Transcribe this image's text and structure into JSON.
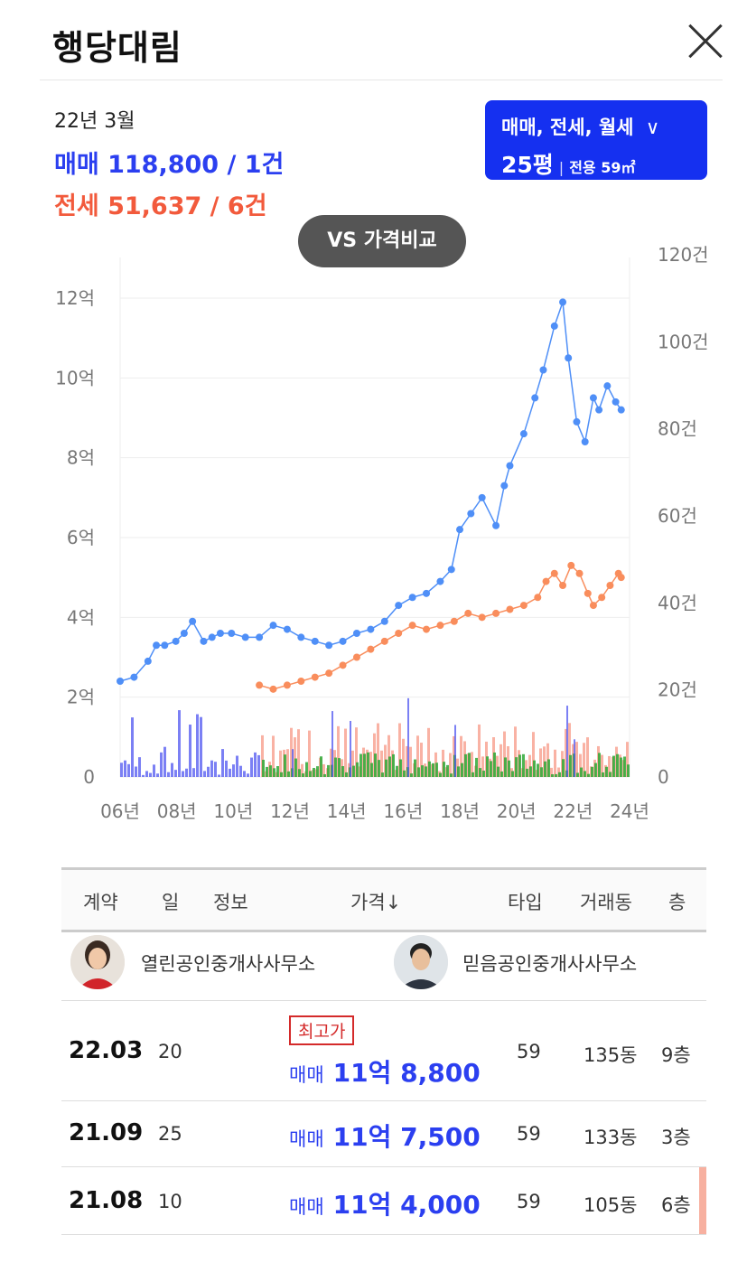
{
  "title": "행당대림",
  "summary": {
    "date": "22년 3월",
    "sale": "매매 118,800 / 1건",
    "jeonse": "전세 51,637 / 6건"
  },
  "filter": {
    "types": "매매, 전세, 월세",
    "size": "25평",
    "area": "전용 59㎡"
  },
  "vs_button": "VS 가격비교",
  "chart_data": {
    "type": "line",
    "x_ticks": [
      "06년",
      "08년",
      "10년",
      "12년",
      "14년",
      "16년",
      "18년",
      "20년",
      "22년",
      "24년"
    ],
    "left_axis": {
      "unit": "억",
      "ticks": [
        "0",
        "2억",
        "4억",
        "6억",
        "8억",
        "10억",
        "12억"
      ],
      "range": [
        0,
        12
      ]
    },
    "right_axis": {
      "unit": "건",
      "ticks": [
        "0",
        "20건",
        "40건",
        "60건",
        "80건",
        "100건",
        "120건"
      ],
      "range": [
        0,
        120
      ]
    },
    "colors": {
      "sale": "#4f8ff7",
      "jeonse": "#f98d5c",
      "sale_volume": "#4f56f0",
      "jeonse_volume": "#f7917d",
      "monthly_volume": "#2fa836"
    },
    "series": [
      {
        "name": "매매",
        "x": [
          2006.0,
          2006.5,
          2007.0,
          2007.3,
          2007.6,
          2008.0,
          2008.3,
          2008.6,
          2009.0,
          2009.3,
          2009.6,
          2010.0,
          2010.5,
          2011.0,
          2011.5,
          2012.0,
          2012.5,
          2013.0,
          2013.5,
          2014.0,
          2014.5,
          2015.0,
          2015.5,
          2016.0,
          2016.5,
          2017.0,
          2017.5,
          2017.9,
          2018.2,
          2018.6,
          2019.0,
          2019.5,
          2019.8,
          2020.0,
          2020.5,
          2020.9,
          2021.2,
          2021.6,
          2021.9,
          2022.1,
          2022.4,
          2022.7,
          2023.0,
          2023.2,
          2023.5,
          2023.8,
          2024.0
        ],
        "y": [
          2.4,
          2.5,
          2.9,
          3.3,
          3.3,
          3.4,
          3.6,
          3.9,
          3.4,
          3.5,
          3.6,
          3.6,
          3.5,
          3.5,
          3.8,
          3.7,
          3.5,
          3.4,
          3.3,
          3.4,
          3.6,
          3.7,
          3.9,
          4.3,
          4.5,
          4.6,
          4.9,
          5.2,
          6.2,
          6.6,
          7.0,
          6.3,
          7.3,
          7.8,
          8.6,
          9.5,
          10.2,
          11.3,
          11.9,
          10.5,
          8.9,
          8.4,
          9.5,
          9.2,
          9.8,
          9.4,
          9.2
        ]
      },
      {
        "name": "전세",
        "x": [
          2011.0,
          2011.5,
          2012.0,
          2012.5,
          2013.0,
          2013.5,
          2014.0,
          2014.5,
          2015.0,
          2015.5,
          2016.0,
          2016.5,
          2017.0,
          2017.5,
          2018.0,
          2018.5,
          2019.0,
          2019.5,
          2020.0,
          2020.5,
          2021.0,
          2021.3,
          2021.6,
          2021.9,
          2022.2,
          2022.5,
          2022.8,
          2023.0,
          2023.3,
          2023.6,
          2023.9,
          2024.0
        ],
        "y": [
          2.3,
          2.2,
          2.3,
          2.4,
          2.5,
          2.6,
          2.8,
          3.0,
          3.2,
          3.4,
          3.6,
          3.8,
          3.7,
          3.8,
          3.9,
          4.1,
          4.0,
          4.1,
          4.2,
          4.3,
          4.5,
          4.9,
          5.1,
          4.8,
          5.3,
          5.1,
          4.6,
          4.3,
          4.5,
          4.8,
          5.1,
          5.0
        ]
      }
    ]
  },
  "table": {
    "headers": [
      "계약",
      "일",
      "정보",
      "가격↓",
      "타입",
      "거래동",
      "층"
    ],
    "agents": [
      {
        "name": "열린공인중개사사무소"
      },
      {
        "name": "믿음공인중개사사무소"
      }
    ],
    "rows": [
      {
        "date": "22.03",
        "day": "20",
        "badge": "최고가",
        "type": "매매",
        "price": "11억 8,800",
        "size": "59",
        "dong": "135동",
        "floor": "9층"
      },
      {
        "date": "21.09",
        "day": "25",
        "badge": "",
        "type": "매매",
        "price": "11억 7,500",
        "size": "59",
        "dong": "133동",
        "floor": "3층"
      },
      {
        "date": "21.08",
        "day": "10",
        "badge": "",
        "type": "매매",
        "price": "11억 4,000",
        "size": "59",
        "dong": "105동",
        "floor": "6층"
      }
    ]
  }
}
